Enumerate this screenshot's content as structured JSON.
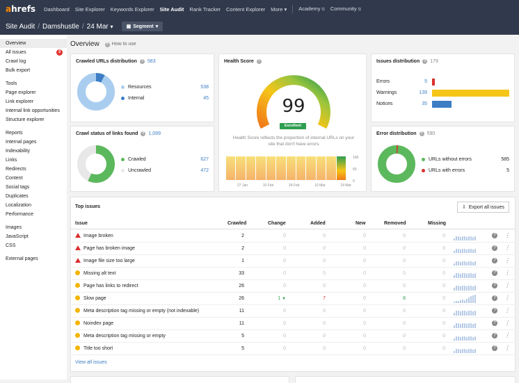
{
  "nav": {
    "logo_a": "a",
    "logo_rest": "hrefs",
    "links": [
      "Dashboard",
      "Site Explorer",
      "Keywords Explorer",
      "Site Audit",
      "Rank Tracker",
      "Content Explorer",
      "More"
    ],
    "academy": "Academy",
    "community": "Community"
  },
  "breadcrumb": {
    "root": "Site Audit",
    "project": "Damshustle",
    "date": "24 Mar",
    "segment": "Segment"
  },
  "sidebar": {
    "top": [
      "Overview",
      "All issues",
      "Crawl log",
      "Bulk export"
    ],
    "all_issues_badge": "3",
    "tools_head": "Tools",
    "tools": [
      "Page explorer",
      "Link explorer",
      "Internal link opportunities",
      "Structure explorer"
    ],
    "reports_head": "Reports",
    "reports": [
      "Internal pages",
      "Indexability",
      "Links",
      "Redirects",
      "Content",
      "Social tags",
      "Duplicates",
      "Localization",
      "Performance"
    ],
    "resources": [
      "Images",
      "JavaScript",
      "CSS"
    ],
    "external": "External pages"
  },
  "overview": {
    "title": "Overview",
    "how_to_use": "How to use"
  },
  "crawled": {
    "title": "Crawled URLs distribution",
    "total": "583",
    "items": [
      {
        "label": "Resources",
        "value": "538",
        "color": "#a9cdee"
      },
      {
        "label": "Internal",
        "value": "45",
        "color": "#3c7dc4"
      }
    ]
  },
  "crawl_status": {
    "title": "Crawl status of links found",
    "total": "1,099",
    "items": [
      {
        "label": "Crawled",
        "value": "627",
        "color": "#5cb85c"
      },
      {
        "label": "Uncrawled",
        "value": "472",
        "color": "#e8e8e8"
      }
    ]
  },
  "health": {
    "title": "Health Score",
    "score": "99",
    "badge": "Excellent",
    "description": "Health Score reflects the proportion of internal URLs on your site that don't have errors",
    "x_labels": [
      "27 Jan",
      "10 Feb",
      "24 Feb",
      "10 Mar",
      "24 Mar"
    ],
    "y_labels": [
      "100",
      "50",
      "0"
    ]
  },
  "issues_dist": {
    "title": "Issues distribution",
    "total": "179",
    "items": [
      {
        "label": "Errors",
        "value": "5",
        "color": "#d9302c",
        "count": 5
      },
      {
        "label": "Warnings",
        "value": "139",
        "color": "#f5c518",
        "count": 139
      },
      {
        "label": "Notices",
        "value": "35",
        "color": "#3c7dc4",
        "count": 35
      }
    ]
  },
  "error_dist": {
    "title": "Error distribution",
    "total": "590",
    "items": [
      {
        "label": "URLs without errors",
        "value": "585",
        "color": "#5cb85c"
      },
      {
        "label": "URLs with errors",
        "value": "5",
        "color": "#d9302c"
      }
    ]
  },
  "top_issues": {
    "title": "Top issues",
    "export": "Export all issues",
    "view_all": "View all issues",
    "columns": [
      "Issue",
      "Crawled",
      "Change",
      "Added",
      "New",
      "Removed",
      "Missing"
    ],
    "rows": [
      {
        "level": "error",
        "issue": "Image broken",
        "crawled": "2",
        "change": "0",
        "added": "0",
        "new": "0",
        "removed": "0",
        "missing": "0"
      },
      {
        "level": "error",
        "issue": "Page has broken image",
        "crawled": "2",
        "change": "0",
        "added": "0",
        "new": "0",
        "removed": "0",
        "missing": "0"
      },
      {
        "level": "error",
        "issue": "Image file size too large",
        "crawled": "1",
        "change": "0",
        "added": "0",
        "new": "0",
        "removed": "0",
        "missing": "0"
      },
      {
        "level": "warning",
        "issue": "Missing alt text",
        "crawled": "33",
        "change": "0",
        "added": "0",
        "new": "0",
        "removed": "0",
        "missing": "0"
      },
      {
        "level": "warning",
        "issue": "Page has links to redirect",
        "crawled": "26",
        "change": "0",
        "added": "0",
        "new": "0",
        "removed": "0",
        "missing": "0"
      },
      {
        "level": "warning",
        "issue": "Slow page",
        "crawled": "26",
        "change": "1",
        "added": "7",
        "new": "0",
        "removed": "8",
        "missing": "0"
      },
      {
        "level": "warning",
        "issue": "Meta description tag missing or empty (not indexable)",
        "crawled": "11",
        "change": "0",
        "added": "0",
        "new": "0",
        "removed": "0",
        "missing": "0"
      },
      {
        "level": "warning",
        "issue": "Noindex page",
        "crawled": "11",
        "change": "0",
        "added": "0",
        "new": "0",
        "removed": "0",
        "missing": "0"
      },
      {
        "level": "warning",
        "issue": "Meta description tag missing or empty",
        "crawled": "5",
        "change": "0",
        "added": "0",
        "new": "0",
        "removed": "0",
        "missing": "0"
      },
      {
        "level": "warning",
        "issue": "Title too short",
        "crawled": "5",
        "change": "0",
        "added": "0",
        "new": "0",
        "removed": "0",
        "missing": "0"
      }
    ]
  }
}
